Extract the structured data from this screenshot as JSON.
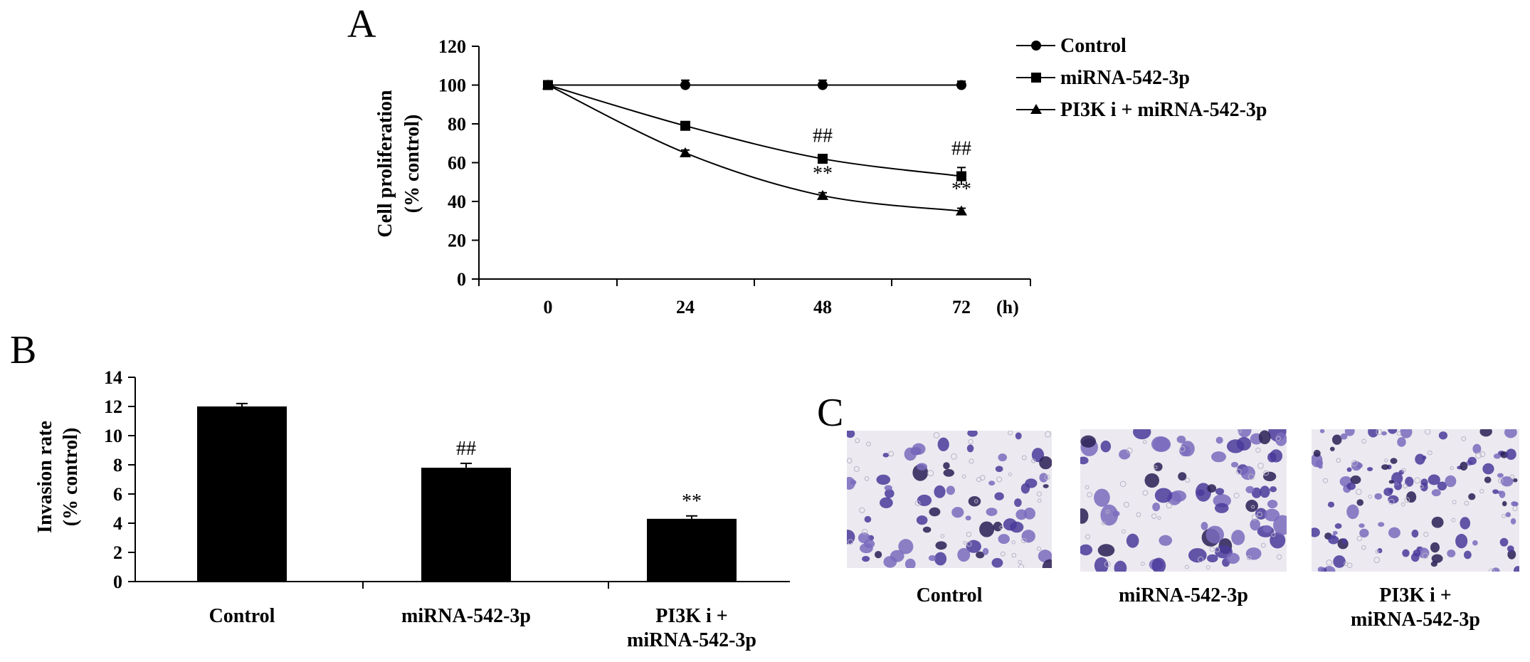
{
  "panels": {
    "a_letter": "A",
    "b_letter": "B",
    "c_letter": "C"
  },
  "chart_data": [
    {
      "panel": "A",
      "type": "line",
      "xlabel": "",
      "x_unit": "(h)",
      "ylabel_line1": "Cell proliferation",
      "ylabel_line2": "(% control)",
      "categories": [
        "0",
        "24",
        "48",
        "72"
      ],
      "ylim": [
        0,
        120
      ],
      "yticks": [
        0,
        20,
        40,
        60,
        80,
        100,
        120
      ],
      "legend_position": "right",
      "series": [
        {
          "name": "Control",
          "marker": "circle",
          "values": [
            100,
            100,
            100,
            100
          ],
          "errors": [
            0,
            2.5,
            2.5,
            2
          ]
        },
        {
          "name": "miRNA-542-3p",
          "marker": "square",
          "values": [
            100,
            79,
            62,
            53
          ],
          "errors": [
            0,
            2,
            2,
            4.5
          ]
        },
        {
          "name": "PI3K i + miRNA-542-3p",
          "marker": "triangle",
          "values": [
            100,
            65,
            43,
            35
          ],
          "errors": [
            0,
            1.5,
            1.5,
            1.5
          ]
        }
      ],
      "annotations": [
        {
          "category": "48",
          "series": "miRNA-542-3p",
          "text": "##"
        },
        {
          "category": "72",
          "series": "miRNA-542-3p",
          "text": "##"
        },
        {
          "category": "48",
          "series": "PI3K i + miRNA-542-3p",
          "text": "**"
        },
        {
          "category": "72",
          "series": "PI3K i + miRNA-542-3p",
          "text": "**"
        }
      ]
    },
    {
      "panel": "B",
      "type": "bar",
      "ylabel_line1": "Invasion rate",
      "ylabel_line2": "(% control)",
      "categories": [
        [
          "Control"
        ],
        [
          "miRNA-542-3p"
        ],
        [
          "PI3K i +",
          "miRNA-542-3p"
        ]
      ],
      "values": [
        12.0,
        7.8,
        4.3
      ],
      "errors": [
        0.2,
        0.3,
        0.2
      ],
      "annotations": [
        "",
        "##",
        "**"
      ],
      "ylim": [
        0,
        14
      ],
      "yticks": [
        0,
        2,
        4,
        6,
        8,
        10,
        12,
        14
      ],
      "bar_color": "#000000"
    }
  ],
  "photos": {
    "panel": "C",
    "labels": [
      [
        "Control"
      ],
      [
        "miRNA-542-3p"
      ],
      [
        "PI3K i +",
        "miRNA-542-3p"
      ]
    ],
    "stain_color": "#4a3a9a",
    "background_color": "#eceaf0"
  }
}
